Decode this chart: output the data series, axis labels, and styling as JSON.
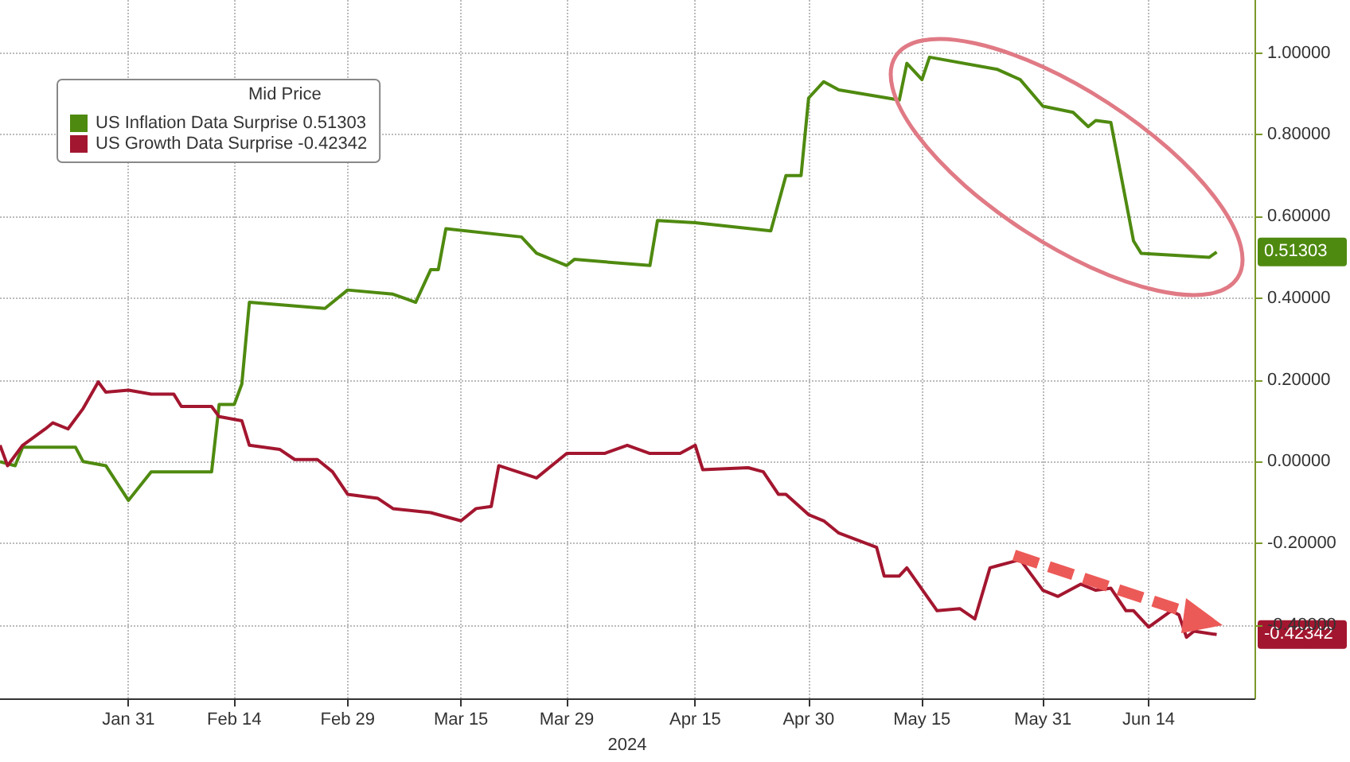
{
  "chart_data": {
    "type": "line",
    "legend_title": "Mid Price",
    "xlabel": "2024",
    "series": [
      {
        "name": "US Inflation Data Surprise 0.51303",
        "color": "#4f8a10",
        "x": [
          "2024-01-14",
          "2024-01-16",
          "2024-01-17",
          "2024-01-24",
          "2024-01-25",
          "2024-01-28",
          "2024-01-31",
          "2024-02-03",
          "2024-02-11",
          "2024-02-12",
          "2024-02-14",
          "2024-02-15",
          "2024-02-16",
          "2024-02-26",
          "2024-02-29",
          "2024-03-06",
          "2024-03-09",
          "2024-03-11",
          "2024-03-12",
          "2024-03-13",
          "2024-03-23",
          "2024-03-25",
          "2024-03-29",
          "2024-03-30",
          "2024-04-09",
          "2024-04-10",
          "2024-04-15",
          "2024-04-25",
          "2024-04-27",
          "2024-04-29",
          "2024-04-30",
          "2024-05-02",
          "2024-05-04",
          "2024-05-12",
          "2024-05-13",
          "2024-05-15",
          "2024-05-16",
          "2024-05-25",
          "2024-05-28",
          "2024-05-31",
          "2024-06-04",
          "2024-06-06",
          "2024-06-07",
          "2024-06-09",
          "2024-06-12",
          "2024-06-13",
          "2024-06-22",
          "2024-06-23"
        ],
        "values": [
          0.0,
          -0.01,
          0.035,
          0.035,
          0.0,
          -0.01,
          -0.095,
          -0.025,
          -0.025,
          0.14,
          0.14,
          0.19,
          0.39,
          0.375,
          0.42,
          0.41,
          0.39,
          0.47,
          0.47,
          0.57,
          0.55,
          0.51,
          0.48,
          0.495,
          0.48,
          0.59,
          0.585,
          0.565,
          0.7,
          0.7,
          0.89,
          0.93,
          0.91,
          0.885,
          0.975,
          0.935,
          0.99,
          0.96,
          0.935,
          0.87,
          0.855,
          0.82,
          0.835,
          0.83,
          0.54,
          0.51,
          0.5,
          0.51303
        ]
      },
      {
        "name": "US Growth Data Surprise -0.42342",
        "color": "#a3162f",
        "x": [
          "2024-01-14",
          "2024-01-15",
          "2024-01-17",
          "2024-01-20",
          "2024-01-21",
          "2024-01-23",
          "2024-01-25",
          "2024-01-27",
          "2024-01-28",
          "2024-01-31",
          "2024-02-03",
          "2024-02-06",
          "2024-02-07",
          "2024-02-11",
          "2024-02-12",
          "2024-02-15",
          "2024-02-16",
          "2024-02-20",
          "2024-02-22",
          "2024-02-25",
          "2024-02-27",
          "2024-02-29",
          "2024-03-04",
          "2024-03-06",
          "2024-03-11",
          "2024-03-15",
          "2024-03-17",
          "2024-03-19",
          "2024-03-20",
          "2024-03-25",
          "2024-03-29",
          "2024-04-03",
          "2024-04-06",
          "2024-04-09",
          "2024-04-13",
          "2024-04-15",
          "2024-04-16",
          "2024-04-22",
          "2024-04-24",
          "2024-04-26",
          "2024-04-27",
          "2024-04-30",
          "2024-05-02",
          "2024-05-04",
          "2024-05-09",
          "2024-05-10",
          "2024-05-12",
          "2024-05-13",
          "2024-05-17",
          "2024-05-20",
          "2024-05-22",
          "2024-05-24",
          "2024-05-25",
          "2024-05-28",
          "2024-05-31",
          "2024-06-02",
          "2024-06-05",
          "2024-06-07",
          "2024-06-09",
          "2024-06-11",
          "2024-06-12",
          "2024-06-14",
          "2024-06-17",
          "2024-06-18",
          "2024-06-19",
          "2024-06-20",
          "2024-06-23"
        ],
        "values": [
          0.04,
          -0.01,
          0.04,
          0.08,
          0.095,
          0.08,
          0.13,
          0.195,
          0.17,
          0.175,
          0.165,
          0.165,
          0.135,
          0.135,
          0.11,
          0.1,
          0.04,
          0.03,
          0.005,
          0.005,
          -0.025,
          -0.08,
          -0.09,
          -0.115,
          -0.125,
          -0.145,
          -0.115,
          -0.11,
          -0.01,
          -0.04,
          0.02,
          0.02,
          0.04,
          0.02,
          0.02,
          0.04,
          -0.02,
          -0.015,
          -0.025,
          -0.08,
          -0.08,
          -0.13,
          -0.145,
          -0.175,
          -0.21,
          -0.28,
          -0.28,
          -0.26,
          -0.365,
          -0.36,
          -0.385,
          -0.26,
          -0.255,
          -0.24,
          -0.315,
          -0.33,
          -0.3,
          -0.315,
          -0.31,
          -0.365,
          -0.365,
          -0.405,
          -0.365,
          -0.375,
          -0.43,
          -0.415,
          -0.42342
        ]
      }
    ],
    "xlim": [
      "2024-01-14",
      "2024-06-28"
    ],
    "xticks": [
      {
        "value": "2024-01-31",
        "label": "Jan 31"
      },
      {
        "value": "2024-02-14",
        "label": "Feb 14"
      },
      {
        "value": "2024-02-29",
        "label": "Feb 29"
      },
      {
        "value": "2024-03-15",
        "label": "Mar 15"
      },
      {
        "value": "2024-03-29",
        "label": "Mar 29"
      },
      {
        "value": "2024-04-15",
        "label": "Apr 15"
      },
      {
        "value": "2024-04-30",
        "label": "Apr 30"
      },
      {
        "value": "2024-05-15",
        "label": "May 15"
      },
      {
        "value": "2024-05-31",
        "label": "May 31"
      },
      {
        "value": "2024-06-14",
        "label": "Jun 14"
      }
    ],
    "ylim": [
      -0.58,
      1.13
    ],
    "yticks": [
      {
        "value": -0.4,
        "label": "-0.40000"
      },
      {
        "value": -0.2,
        "label": "-0.20000"
      },
      {
        "value": 0,
        "label": "0.00000"
      },
      {
        "value": 0.2,
        "label": "0.20000"
      },
      {
        "value": 0.4,
        "label": "0.40000"
      },
      {
        "value": 0.6,
        "label": "0.60000"
      },
      {
        "value": 0.8,
        "label": "0.80000"
      },
      {
        "value": 1.0,
        "label": "1.00000"
      }
    ],
    "annotations": [
      {
        "text": "0.51303",
        "x": "2024-06-23",
        "y": 0.51303
      },
      {
        "text": "-0.42342",
        "x": "2024-06-23",
        "y": -0.42342
      }
    ],
    "grid": true,
    "legend": "top left",
    "marker": "none",
    "line_style": "solid"
  }
}
